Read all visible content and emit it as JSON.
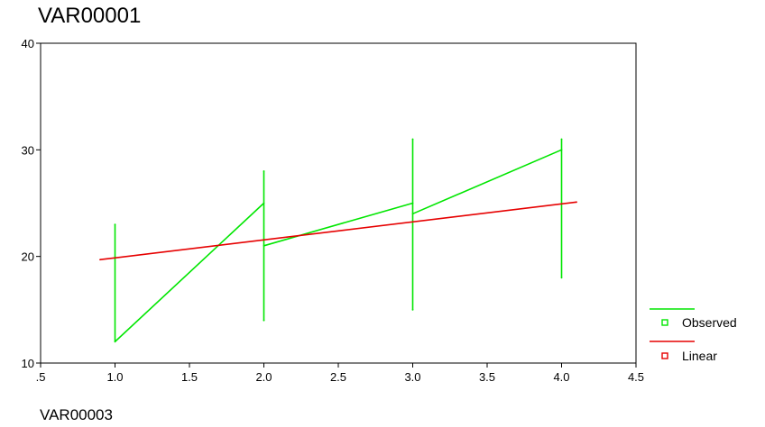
{
  "chart_data": {
    "type": "line",
    "title": "",
    "ylabel": "VAR00001",
    "xlabel": "VAR00003",
    "xlim": [
      0.5,
      4.5
    ],
    "ylim": [
      10,
      40
    ],
    "x_ticks": [
      0.5,
      1.0,
      1.5,
      2.0,
      2.5,
      3.0,
      3.5,
      4.0,
      4.5
    ],
    "x_tick_labels": [
      ".5",
      "1.0",
      "1.5",
      "2.0",
      "2.5",
      "3.0",
      "3.5",
      "4.0",
      "4.5"
    ],
    "y_ticks": [
      10,
      20,
      30,
      40
    ],
    "y_tick_labels": [
      "10",
      "20",
      "30",
      "40"
    ],
    "grid": false,
    "legend_position": "bottom-right",
    "series": [
      {
        "name": "Observed",
        "color": "#00e600",
        "points": [
          [
            1.0,
            23
          ],
          [
            1.0,
            12
          ],
          [
            2.0,
            25
          ],
          [
            2.0,
            28
          ],
          [
            2.0,
            14
          ],
          [
            2.0,
            21
          ],
          [
            3.0,
            25
          ],
          [
            3.0,
            31
          ],
          [
            3.0,
            15
          ],
          [
            3.0,
            24
          ],
          [
            4.0,
            30
          ],
          [
            4.0,
            31
          ],
          [
            4.0,
            18
          ]
        ]
      },
      {
        "name": "Linear",
        "color": "#e60000",
        "points": [
          [
            0.9,
            19.7
          ],
          [
            4.1,
            25.1
          ]
        ]
      }
    ]
  }
}
